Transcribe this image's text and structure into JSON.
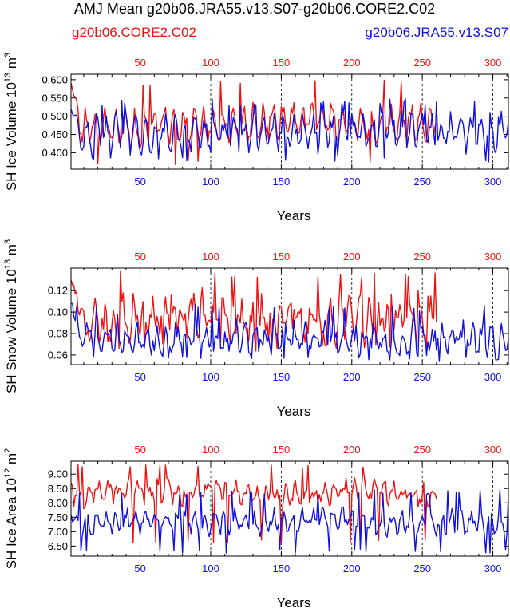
{
  "figure": {
    "title": "AMJ Mean g20b06.JRA55.v13.S07-g20b06.CORE2.C02",
    "legend": {
      "red_label": "g20b06.CORE2.C02",
      "blue_label": "g20b06.JRA55.v13.S07"
    }
  },
  "colors": {
    "red": "#ee1111",
    "blue": "#1111dd",
    "axis": "#000000"
  },
  "chart_data": [
    {
      "type": "line",
      "name": "ice_volume",
      "ylabel": "SH Ice Volume 10",
      "ylabel_exp": "13",
      "ylabel_unit": " m",
      "ylabel_unit_exp": "3",
      "xlabel": "Years",
      "xlim": [
        1,
        311
      ],
      "ylim": [
        0.355,
        0.615
      ],
      "yticks": [
        0.4,
        0.45,
        0.5,
        0.55,
        0.6
      ],
      "ytick_labels": [
        "0.400",
        "0.450",
        "0.500",
        "0.550",
        "0.600"
      ],
      "top_xticks": [
        50,
        100,
        150,
        200,
        250,
        300
      ],
      "bottom_xticks": [
        50,
        100,
        150,
        200,
        250,
        300
      ],
      "grid_x": [
        50,
        100,
        150,
        200,
        250,
        300
      ],
      "series": [
        {
          "name": "g20b06.CORE2.C02",
          "color": "red",
          "n": 260,
          "base": 0.48,
          "amp": 0.038,
          "mid": 0.05,
          "slow": 0.009,
          "hi": 0.6,
          "lo": 0.365,
          "seed": 11,
          "start": 0.59,
          "lead": 7,
          "clampMax": 0.6,
          "clampMin": 0.362
        },
        {
          "name": "g20b06.JRA55.v13.S07",
          "color": "blue",
          "n": 311,
          "base": 0.455,
          "amp": 0.036,
          "mid": 0.052,
          "slow": 0.005,
          "hi": 0.55,
          "lo": 0.37,
          "seed": 23,
          "start": 0.52,
          "lead": 6,
          "clampMax": 0.555,
          "clampMin": 0.362
        }
      ]
    },
    {
      "type": "line",
      "name": "snow_volume",
      "ylabel": "SH Snow Volume 10",
      "ylabel_exp": "13",
      "ylabel_unit": " m",
      "ylabel_unit_exp": "3",
      "xlabel": "Years",
      "xlim": [
        1,
        311
      ],
      "ylim": [
        0.051,
        0.141
      ],
      "yticks": [
        0.06,
        0.08,
        0.1,
        0.12
      ],
      "ytick_labels": [
        "0.06",
        "0.08",
        "0.10",
        "0.12"
      ],
      "top_xticks": [
        50,
        100,
        150,
        200,
        250,
        300
      ],
      "bottom_xticks": [
        50,
        100,
        150,
        200,
        250,
        300
      ],
      "grid_x": [
        50,
        100,
        150,
        200,
        250,
        300
      ],
      "series": [
        {
          "name": "g20b06.CORE2.C02",
          "color": "red",
          "n": 260,
          "base": 0.094,
          "amp": 0.012,
          "mid": 0.03,
          "slow": 0.0045,
          "hi": 0.138,
          "lo": 0.067,
          "seed": 37,
          "start": 0.13,
          "lead": 9,
          "clampMax": 0.139,
          "clampMin": 0.058
        },
        {
          "name": "g20b06.JRA55.v13.S07",
          "color": "blue",
          "n": 311,
          "base": 0.075,
          "amp": 0.01,
          "mid": 0.02,
          "slow": 0.003,
          "hi": 0.107,
          "lo": 0.053,
          "seed": 41,
          "start": 0.112,
          "lead": 6,
          "clampMax": 0.108,
          "clampMin": 0.053
        }
      ]
    },
    {
      "type": "line",
      "name": "ice_area",
      "ylabel": "SH Ice Area 10",
      "ylabel_exp": "12",
      "ylabel_unit": " m",
      "ylabel_unit_exp": "2",
      "xlabel": "Years",
      "xlim": [
        1,
        311
      ],
      "ylim": [
        6.15,
        9.45
      ],
      "yticks": [
        6.5,
        7.0,
        7.5,
        8.0,
        8.5,
        9.0
      ],
      "ytick_labels": [
        "6.50",
        "7.00",
        "7.50",
        "8.00",
        "8.50",
        "9.00"
      ],
      "top_xticks": [
        50,
        100,
        150,
        200,
        250,
        300
      ],
      "bottom_xticks": [
        50,
        100,
        150,
        200,
        250,
        300
      ],
      "grid_x": [
        50,
        100,
        150,
        200,
        250,
        300
      ],
      "series": [
        {
          "name": "g20b06.CORE2.C02",
          "color": "red",
          "n": 260,
          "base": 8.35,
          "amp": 0.22,
          "mid": 0.55,
          "slow": 0.1,
          "hi": 9.35,
          "lo": 6.6,
          "seed": 53,
          "start": 8.7,
          "lead": 5,
          "clampMax": 9.38,
          "clampMin": 6.4
        },
        {
          "name": "g20b06.JRA55.v13.S07",
          "color": "blue",
          "n": 311,
          "base": 7.35,
          "amp": 0.28,
          "mid": 0.45,
          "slow": 0.08,
          "hi": 8.45,
          "lo": 6.25,
          "seed": 67,
          "start": 7.6,
          "lead": 5,
          "clampMax": 8.5,
          "clampMin": 6.2
        }
      ]
    }
  ]
}
